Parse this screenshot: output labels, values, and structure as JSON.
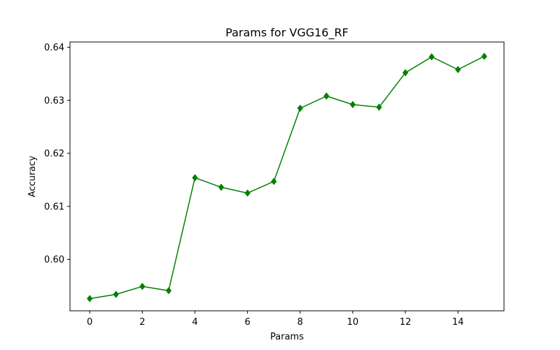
{
  "chart_data": {
    "type": "line",
    "title": "Params for VGG16_RF",
    "xlabel": "Params",
    "ylabel": "Accuracy",
    "x": [
      0,
      1,
      2,
      3,
      4,
      5,
      6,
      7,
      8,
      9,
      10,
      11,
      12,
      13,
      14,
      15
    ],
    "series": [
      {
        "values": [
          0.5926,
          0.5934,
          0.5949,
          0.5941,
          0.6154,
          0.6136,
          0.6125,
          0.6147,
          0.6285,
          0.6308,
          0.6292,
          0.6287,
          0.6352,
          0.6382,
          0.6358,
          0.6383
        ],
        "color": "#008000",
        "marker": "diamond"
      }
    ],
    "xlim": [
      -0.75,
      15.75
    ],
    "ylim": [
      0.5903,
      0.641
    ],
    "xticks": [
      0,
      2,
      4,
      6,
      8,
      10,
      12,
      14
    ],
    "xtick_labels": [
      "0",
      "2",
      "4",
      "6",
      "8",
      "10",
      "12",
      "14"
    ],
    "yticks": [
      0.6,
      0.61,
      0.62,
      0.63,
      0.64
    ],
    "ytick_labels": [
      "0.60",
      "0.61",
      "0.62",
      "0.63",
      "0.64"
    ],
    "grid": false,
    "legend": "none"
  }
}
